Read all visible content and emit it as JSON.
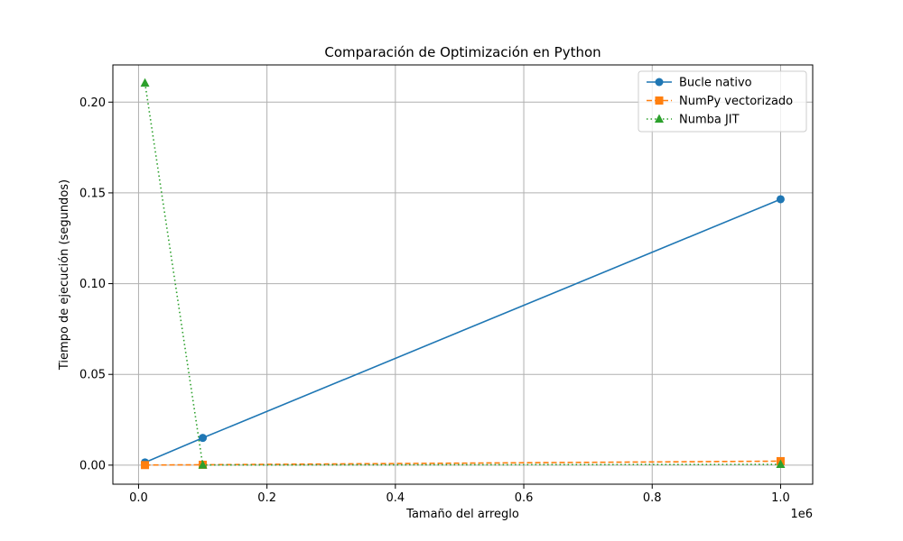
{
  "chart_data": {
    "type": "line",
    "title": "Comparación de Optimización en Python",
    "xlabel": "Tamaño del arreglo",
    "ylabel": "Tiempo de ejecución (segundos)",
    "x_offset_label": "1e6",
    "x": [
      10000,
      100000,
      1000000
    ],
    "xlim": [
      -40000,
      1050000
    ],
    "ylim": [
      -0.0105,
      0.2205
    ],
    "xticks": [
      0,
      200000,
      400000,
      600000,
      800000,
      1000000
    ],
    "xtick_labels": [
      "0.0",
      "0.2",
      "0.4",
      "0.6",
      "0.8",
      "1.0"
    ],
    "yticks": [
      0.0,
      0.05,
      0.1,
      0.15,
      0.2
    ],
    "ytick_labels": [
      "0.00",
      "0.05",
      "0.10",
      "0.15",
      "0.20"
    ],
    "grid": true,
    "legend_position": "top-right",
    "series": [
      {
        "name": "Bucle nativo",
        "values": [
          0.0015,
          0.015,
          0.1465
        ],
        "color": "#1f77b4",
        "marker": "circle",
        "linestyle": "solid"
      },
      {
        "name": "NumPy vectorizado",
        "values": [
          5e-05,
          0.0002,
          0.0022
        ],
        "color": "#ff7f0e",
        "marker": "square",
        "linestyle": "dashed"
      },
      {
        "name": "Numba JIT",
        "values": [
          0.2105,
          5e-05,
          0.0004
        ],
        "color": "#2ca02c",
        "marker": "triangle",
        "linestyle": "dotted"
      }
    ]
  }
}
